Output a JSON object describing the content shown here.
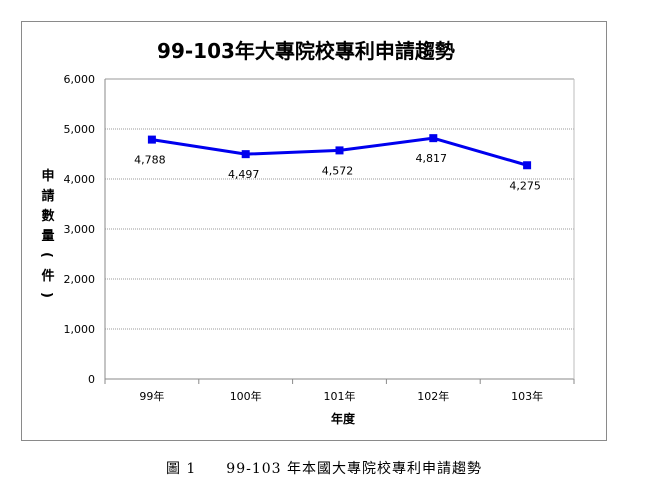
{
  "chart_data": {
    "type": "line",
    "title": "99-103年大專院校專利申請趨勢",
    "categories": [
      "99年",
      "100年",
      "101年",
      "102年",
      "103年"
    ],
    "series": [
      {
        "values": [
          4788,
          4497,
          4572,
          4817,
          4275
        ],
        "color": "#0000ee"
      }
    ],
    "data_labels": [
      "4,788",
      "4,497",
      "4,572",
      "4,817",
      "4,275"
    ],
    "xlabel": "年度",
    "ylabel": "申請數量(件)",
    "ylim": [
      0,
      6000
    ],
    "yticks": [
      0,
      1000,
      2000,
      3000,
      4000,
      5000,
      6000
    ],
    "ytick_labels": [
      "0",
      "1,000",
      "2,000",
      "3,000",
      "4,000",
      "5,000",
      "6,000"
    ],
    "grid": true,
    "legend": "none"
  },
  "caption": "圖 1　　99-103 年本國大專院校專利申請趨勢"
}
